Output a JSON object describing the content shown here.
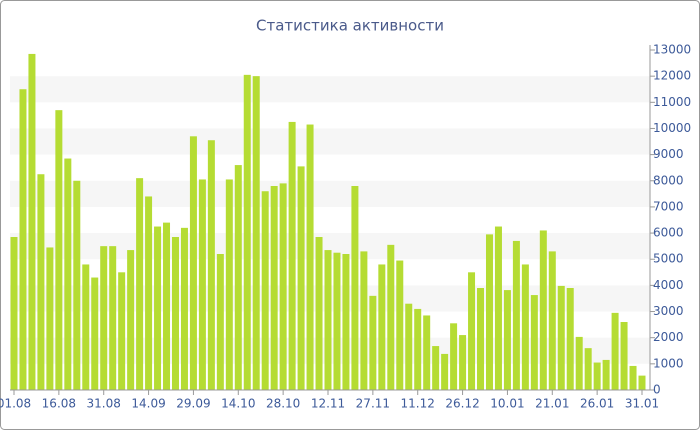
{
  "chart_data": {
    "type": "bar",
    "title": "Статистика активности",
    "categories": [
      "01.08",
      null,
      null,
      null,
      null,
      "16.08",
      null,
      null,
      null,
      null,
      "31.08",
      null,
      null,
      null,
      null,
      "14.09",
      null,
      null,
      null,
      null,
      "29.09",
      null,
      null,
      null,
      null,
      "14.10",
      null,
      null,
      null,
      null,
      "28.10",
      null,
      null,
      null,
      null,
      "12.11",
      null,
      null,
      null,
      null,
      "27.11",
      null,
      null,
      null,
      null,
      "11.12",
      null,
      null,
      null,
      null,
      "26.12",
      null,
      null,
      null,
      null,
      "10.01",
      null,
      null,
      null,
      null,
      "21.01",
      null,
      null,
      null,
      null,
      "26.01",
      null,
      null,
      null,
      null,
      "31.01"
    ],
    "values": [
      5850,
      11500,
      12850,
      8250,
      5450,
      10700,
      8850,
      8000,
      4800,
      4300,
      5500,
      5500,
      4500,
      5350,
      8100,
      7400,
      6250,
      6400,
      5850,
      6200,
      9700,
      8050,
      9550,
      5200,
      8050,
      8600,
      12050,
      12000,
      7600,
      7800,
      7900,
      10250,
      8550,
      10150,
      5850,
      5350,
      5250,
      5200,
      7800,
      5300,
      3600,
      4800,
      5550,
      4950,
      3300,
      3100,
      2850,
      1680,
      1380,
      2550,
      2100,
      4500,
      3900,
      5950,
      6250,
      3820,
      5700,
      4800,
      3630,
      6100,
      5300,
      3980,
      3900,
      2030,
      1600,
      1050,
      1150,
      2950,
      2600,
      920,
      550
    ],
    "color": "#b5dc33",
    "ylim": [
      0,
      13000
    ],
    "yticks": [
      0,
      1000,
      2000,
      3000,
      4000,
      5000,
      6000,
      7000,
      8000,
      9000,
      10000,
      11000,
      12000,
      13000
    ],
    "grid": true
  }
}
